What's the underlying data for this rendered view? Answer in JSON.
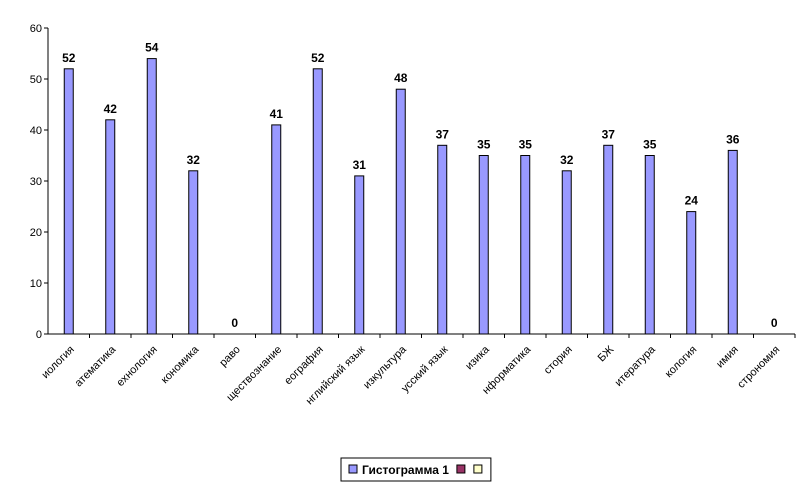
{
  "chart_data": {
    "type": "bar",
    "categories": [
      "иология",
      "атематика",
      "ехнология",
      "кономика",
      "раво",
      "ществознание",
      "еография",
      "нглийский язык",
      "изкультура",
      "усский язык",
      "изика",
      "нформатика",
      "стория",
      "БЖ",
      "итература",
      "кология",
      "имия",
      "строномия"
    ],
    "series": [
      {
        "name": "Гистограмма 1",
        "values": [
          52,
          42,
          54,
          32,
          0,
          41,
          52,
          31,
          48,
          37,
          35,
          35,
          32,
          37,
          35,
          24,
          36,
          0
        ],
        "color": "#9999ff"
      }
    ],
    "data_labels": [
      "52",
      "42",
      "54",
      "32",
      "0",
      "41",
      "52",
      "31",
      "48",
      "37",
      "35",
      "35",
      "32",
      "37",
      "35",
      "24",
      "36",
      "0"
    ],
    "yticks": [
      "0",
      "10",
      "20",
      "30",
      "40",
      "50",
      "60"
    ],
    "ylim": [
      0,
      60
    ],
    "grid": false,
    "legend": {
      "placement": "bottom",
      "entries": [
        {
          "label": "Гистограмма 1",
          "color": "#9999ff"
        },
        {
          "label": "",
          "color": "#993366"
        },
        {
          "label": "",
          "color": "#ffffcc"
        }
      ]
    }
  }
}
